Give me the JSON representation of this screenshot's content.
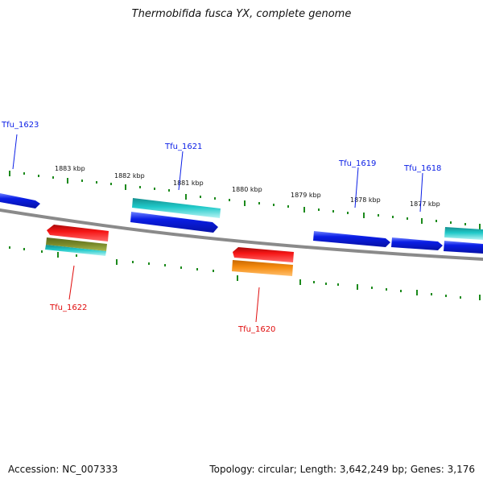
{
  "title": "Thermobifida fusca YX, complete genome",
  "footer": {
    "accession": "Accession: NC_007333",
    "summary": "Topology: circular; Length: 3,642,249 bp; Genes: 3,176"
  },
  "colors": {
    "backbone": "#8a8a8a",
    "tick": "#1c8a1c",
    "cds": "#0a1ee6",
    "gene": "#20c9c9",
    "rna": "#f51515",
    "olive": "#7a8a2a",
    "orange": "#f58c10",
    "forward_label": "#0a1ee6",
    "reverse_label": "#e00c0c"
  },
  "kbp_labels": [
    "1877 kbp",
    "1878 kbp",
    "1879 kbp",
    "1880 kbp",
    "1881 kbp",
    "1882 kbp",
    "1883 kbp"
  ],
  "gene_labels": {
    "tfu_1623": "Tfu_1623",
    "tfu_1622": "Tfu_1622",
    "tfu_1621": "Tfu_1621",
    "tfu_1620": "Tfu_1620",
    "tfu_1619": "Tfu_1619",
    "tfu_1618": "Tfu_1618"
  }
}
